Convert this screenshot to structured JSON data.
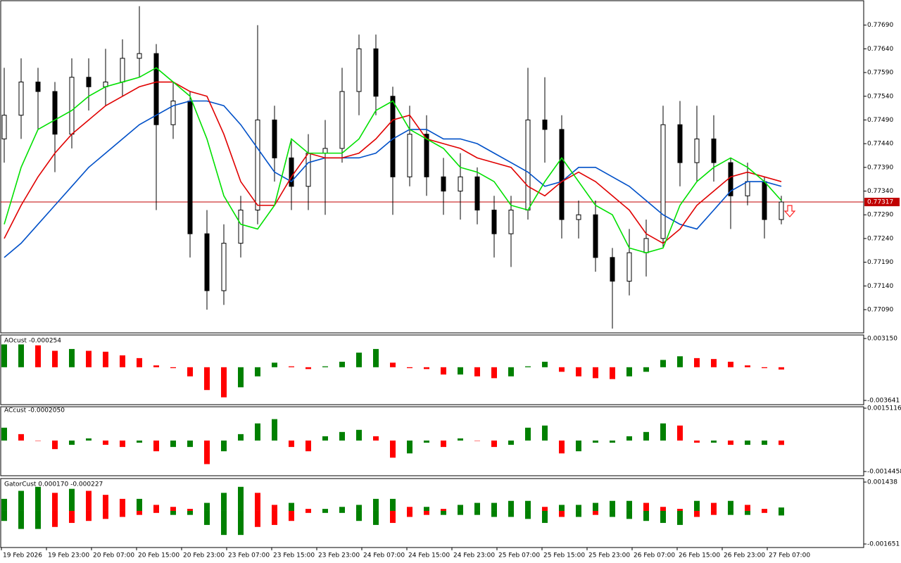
{
  "chart_data": [
    {
      "type": "candlestick",
      "open": [
        0.7745,
        0.775,
        0.7757,
        0.7755,
        0.7746,
        0.7758,
        0.7756,
        0.7757,
        0.7762,
        0.7763,
        0.7748,
        0.7753,
        0.7725,
        0.7713,
        0.7723,
        0.773,
        0.7749,
        0.7741,
        0.7735,
        0.7742,
        0.7743,
        0.7755,
        0.7764,
        0.7754,
        0.7737,
        0.7746,
        0.7737,
        0.7734,
        0.7737,
        0.773,
        0.7725,
        0.773,
        0.7749,
        0.7747,
        0.7728,
        0.7729,
        0.772,
        0.7715,
        0.7721,
        0.7724,
        0.7748,
        0.774,
        0.7745,
        0.774,
        0.7733,
        0.7736,
        0.7728
      ],
      "high": [
        0.776,
        0.7762,
        0.776,
        0.7757,
        0.7762,
        0.7762,
        0.7764,
        0.7766,
        0.7773,
        0.7765,
        0.7757,
        0.7755,
        0.773,
        0.7727,
        0.7733,
        0.7769,
        0.7752,
        0.7745,
        0.7746,
        0.7749,
        0.776,
        0.7767,
        0.7767,
        0.7756,
        0.7752,
        0.775,
        0.7741,
        0.7742,
        0.7739,
        0.7733,
        0.7733,
        0.776,
        0.7758,
        0.775,
        0.7732,
        0.7732,
        0.7722,
        0.7726,
        0.7728,
        0.7752,
        0.7753,
        0.7752,
        0.775,
        0.7741,
        0.774,
        0.7737,
        0.7733
      ],
      "low": [
        0.774,
        0.7745,
        0.7747,
        0.7738,
        0.7743,
        0.7751,
        0.7752,
        0.7754,
        0.7758,
        0.773,
        0.7745,
        0.772,
        0.7709,
        0.771,
        0.772,
        0.7727,
        0.7736,
        0.773,
        0.773,
        0.7729,
        0.774,
        0.775,
        0.775,
        0.7729,
        0.7735,
        0.7733,
        0.7729,
        0.7728,
        0.7727,
        0.772,
        0.7718,
        0.7728,
        0.774,
        0.7724,
        0.7724,
        0.7717,
        0.7705,
        0.7712,
        0.7716,
        0.7722,
        0.7735,
        0.7736,
        0.7736,
        0.7726,
        0.7731,
        0.7724,
        0.7727
      ],
      "close": [
        0.775,
        0.7757,
        0.7755,
        0.7746,
        0.7758,
        0.7756,
        0.7757,
        0.7762,
        0.7763,
        0.7748,
        0.7753,
        0.7725,
        0.7713,
        0.7723,
        0.773,
        0.7749,
        0.7741,
        0.7735,
        0.7742,
        0.7743,
        0.7755,
        0.7764,
        0.7754,
        0.7737,
        0.7746,
        0.7737,
        0.7734,
        0.7737,
        0.773,
        0.7725,
        0.773,
        0.7749,
        0.7747,
        0.7728,
        0.7729,
        0.772,
        0.7715,
        0.7721,
        0.7724,
        0.7748,
        0.774,
        0.7745,
        0.774,
        0.7733,
        0.7736,
        0.7728,
        0.77317
      ],
      "up_color": "#ffffff",
      "down_color": "#000000",
      "ma": [
        {
          "color": "#0050c8",
          "values": [
            0.772,
            0.7723,
            0.7727,
            0.7731,
            0.7735,
            0.7739,
            0.7742,
            0.7745,
            0.7748,
            0.775,
            0.7752,
            0.7753,
            0.7753,
            0.7752,
            0.7748,
            0.7743,
            0.7738,
            0.7736,
            0.774,
            0.7741,
            0.7741,
            0.7741,
            0.7742,
            0.7745,
            0.7747,
            0.7747,
            0.7745,
            0.7745,
            0.7744,
            0.7742,
            0.774,
            0.7738,
            0.7735,
            0.7736,
            0.7739,
            0.7739,
            0.7737,
            0.7735,
            0.7732,
            0.7729,
            0.7727,
            0.7726,
            0.773,
            0.7734,
            0.7736,
            0.7736,
            0.7735
          ]
        },
        {
          "color": "#e00000",
          "values": [
            0.7724,
            0.7731,
            0.7737,
            0.7742,
            0.7746,
            0.7749,
            0.7752,
            0.7754,
            0.7756,
            0.7757,
            0.7757,
            0.7755,
            0.7754,
            0.7746,
            0.7736,
            0.7731,
            0.7731,
            0.7737,
            0.7742,
            0.7741,
            0.7741,
            0.7742,
            0.7745,
            0.7749,
            0.775,
            0.7745,
            0.7744,
            0.7743,
            0.7741,
            0.774,
            0.7739,
            0.7735,
            0.7733,
            0.7736,
            0.7738,
            0.7736,
            0.7733,
            0.773,
            0.7725,
            0.7723,
            0.7726,
            0.7731,
            0.7734,
            0.7737,
            0.7738,
            0.7737,
            0.7736
          ]
        },
        {
          "color": "#00e000",
          "values": [
            0.7727,
            0.7739,
            0.7747,
            0.7749,
            0.7751,
            0.7754,
            0.7756,
            0.7757,
            0.7758,
            0.776,
            0.7757,
            0.7754,
            0.7745,
            0.7733,
            0.7727,
            0.7726,
            0.7731,
            0.7745,
            0.7742,
            0.7742,
            0.7742,
            0.7745,
            0.7751,
            0.7753,
            0.7747,
            0.7745,
            0.7743,
            0.7739,
            0.7738,
            0.7736,
            0.7731,
            0.773,
            0.7736,
            0.7741,
            0.7736,
            0.7731,
            0.7729,
            0.7722,
            0.7721,
            0.7722,
            0.7731,
            0.7736,
            0.7739,
            0.7741,
            0.7739,
            0.7736,
            0.7732
          ]
        }
      ],
      "current_price": 0.77317,
      "price_line_color": "#c00000",
      "ylim": [
        0.77041,
        0.7774
      ],
      "yticks": [
        {
          "value": 0.7769,
          "label": "0.77690"
        },
        {
          "value": 0.7764,
          "label": "0.77640"
        },
        {
          "value": 0.7759,
          "label": "0.77590"
        },
        {
          "value": 0.7754,
          "label": "0.77540"
        },
        {
          "value": 0.7749,
          "label": "0.77490"
        },
        {
          "value": 0.7744,
          "label": "0.77440"
        },
        {
          "value": 0.7739,
          "label": "0.77390"
        },
        {
          "value": 0.7734,
          "label": "0.77340"
        },
        {
          "value": 0.7729,
          "label": "0.77290"
        },
        {
          "value": 0.7724,
          "label": "0.77240"
        },
        {
          "value": 0.7719,
          "label": "0.77190"
        },
        {
          "value": 0.7714,
          "label": "0.77140"
        },
        {
          "value": 0.7709,
          "label": "0.77090"
        }
      ],
      "time_labels": [
        "19 Feb 2026",
        "19 Feb 23:00",
        "20 Feb 07:00",
        "20 Feb 15:00",
        "20 Feb 23:00",
        "23 Feb 07:00",
        "23 Feb 15:00",
        "23 Feb 23:00",
        "24 Feb 07:00",
        "24 Feb 15:00",
        "24 Feb 23:00",
        "25 Feb 07:00",
        "25 Feb 15:00",
        "25 Feb 23:00",
        "26 Feb 07:00",
        "26 Feb 15:00",
        "26 Feb 23:00",
        "27 Feb 07:00"
      ]
    },
    {
      "type": "bar",
      "title": "AOcust -0.000254",
      "up_color": "#008000",
      "down_color": "#ff0000",
      "values": [
        0.0025,
        0.0025,
        0.0024,
        0.0018,
        0.002,
        0.0018,
        0.0017,
        0.0013,
        0.001,
        0.0002,
        -0.0001,
        -0.001,
        -0.0025,
        -0.0033,
        -0.0022,
        -0.001,
        0.0005,
        0.0001,
        -0.0002,
        0.0001,
        0.0006,
        0.0016,
        0.002,
        0.0005,
        -0.0001,
        -0.0002,
        -0.0008,
        -0.0008,
        -0.001,
        -0.0012,
        -0.001,
        0.0001,
        0.0006,
        -0.0005,
        -0.001,
        -0.0012,
        -0.0013,
        -0.001,
        -0.0005,
        0.0008,
        0.0012,
        0.001,
        0.0009,
        0.0006,
        0.0002,
        -0.0001,
        -0.000254
      ],
      "ylim": [
        -0.003641,
        0.00315
      ],
      "yticks": [
        {
          "value": 0.00315,
          "label": "0.003150"
        },
        -0.003641
      ]
    },
    {
      "type": "bar",
      "title": "ACcust -0.0002050",
      "up_color": "#008000",
      "down_color": "#ff0000",
      "values": [
        0.0006,
        0.0003,
        0.0,
        -0.0004,
        -0.0002,
        0.0001,
        -0.0002,
        -0.0003,
        -0.0001,
        -0.0005,
        -0.0003,
        -0.0003,
        -0.0011,
        -0.0005,
        0.0003,
        0.0008,
        0.001,
        -0.0003,
        -0.0005,
        0.0002,
        0.0004,
        0.0005,
        0.0002,
        -0.0008,
        -0.0006,
        -0.0001,
        -0.0003,
        0.0001,
        0.0,
        -0.0003,
        -0.0002,
        0.0006,
        0.0007,
        -0.0006,
        -0.0005,
        -0.0001,
        -0.0001,
        0.0002,
        0.0004,
        0.0008,
        0.0007,
        -0.0001,
        -0.0001,
        -0.0002,
        -0.0002,
        -0.0002,
        -0.000205
      ],
      "ylim": [
        -0.0014458,
        0.0015116
      ],
      "yticks": [
        0.0015116,
        -0.0014458
      ]
    },
    {
      "type": "gator",
      "title": "GatorCust 0.000170 -0.000227",
      "up_color": "#008000",
      "down_color": "#ff0000",
      "upper": [
        0.0006,
        0.001,
        0.0012,
        0.0009,
        0.0011,
        0.001,
        0.0008,
        0.0006,
        0.0006,
        0.0003,
        0.0002,
        0.0001,
        0.0004,
        0.0009,
        0.0012,
        0.0009,
        0.0003,
        0.0004,
        0.0001,
        0.0001,
        0.0002,
        0.0003,
        0.0006,
        0.0006,
        0.0002,
        0.0002,
        0.0001,
        0.0003,
        0.0004,
        0.0004,
        0.0005,
        0.0005,
        0.0002,
        0.0003,
        0.0003,
        0.0004,
        0.0005,
        0.0005,
        0.0004,
        0.0002,
        0.0001,
        0.0005,
        0.0004,
        0.0005,
        0.0003,
        0.0001,
        0.00017
      ],
      "lower": [
        -0.0005,
        -0.0009,
        -0.0009,
        -0.0008,
        -0.0006,
        -0.0005,
        -0.0004,
        -0.0003,
        -0.0002,
        -0.0001,
        -0.0002,
        -0.0002,
        -0.0007,
        -0.0012,
        -0.0012,
        -0.0008,
        -0.0007,
        -0.0005,
        -0.0001,
        -0.0001,
        -0.0001,
        -0.0005,
        -0.0007,
        -0.0006,
        -0.0003,
        -0.0002,
        -0.0002,
        -0.0002,
        -0.0002,
        -0.0003,
        -0.0003,
        -0.0004,
        -0.0006,
        -0.0003,
        -0.0003,
        -0.0002,
        -0.0003,
        -0.0004,
        -0.0005,
        -0.0006,
        -0.0007,
        -0.0003,
        -0.0002,
        -0.0002,
        -0.0002,
        -0.0001,
        -0.000227
      ],
      "ylim": [
        -0.001651,
        0.001438
      ],
      "yticks": [
        0.001438,
        -0.001651
      ]
    }
  ]
}
